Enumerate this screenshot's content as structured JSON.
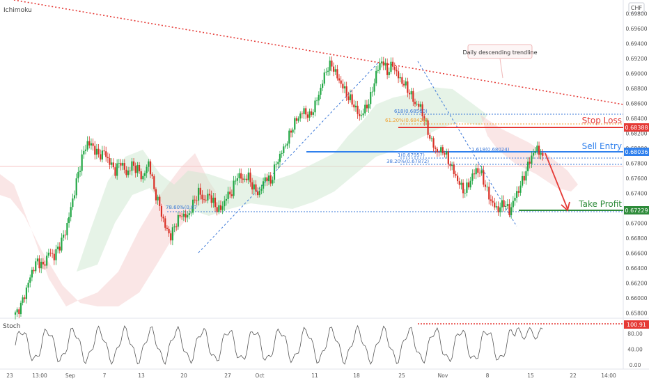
{
  "indicators": {
    "main": "Ichimoku",
    "sub": "Stoch",
    "currency": "CHF"
  },
  "chart_data": {
    "type": "candlestick",
    "price_axis": {
      "ticks": [
        "0.69800",
        "0.69600",
        "0.69400",
        "0.69200",
        "0.69000",
        "0.68800",
        "0.68600",
        "0.68400",
        "0.68200",
        "0.68000",
        "0.67800",
        "0.67600",
        "0.67400",
        "0.67200",
        "0.67000",
        "0.66800",
        "0.66600",
        "0.66400",
        "0.66200",
        "0.66000",
        "0.65800"
      ],
      "range": [
        0.6575,
        0.6998
      ]
    },
    "stoch_axis": {
      "ticks": [
        "80.00",
        "40.00",
        "0.00"
      ],
      "range": [
        0,
        110
      ]
    },
    "time_axis": {
      "labels": [
        "23",
        "13:00",
        "Sep",
        "7",
        "13",
        "20",
        "27",
        "Oct",
        "11",
        "18",
        "25",
        "Nov",
        "8",
        "15",
        "22",
        "14:00"
      ]
    },
    "price_tags": {
      "stop_loss": "0.68388",
      "sell_entry": "0.68036",
      "take_profit": "0.67229",
      "stoch_value": "100.91"
    },
    "annotations": {
      "trendline": "Daily descending trendline",
      "stop_loss": "Stop Loss",
      "sell_entry": "Sell Entry",
      "take_profit": "Take Profit",
      "fib_786": "78.60%(0.67",
      "fib_618a": "618(0.68560)",
      "fib_618b": "61.20%(0.68421)",
      "fib_1": "1(0.67957)",
      "fib_382": "38.20%(0.67872)",
      "fib_1618": "1.618(0.68024)"
    },
    "levels": {
      "stop_loss": 0.68388,
      "sell_entry": 0.68036,
      "take_profit": 0.67229,
      "fib_618a": 0.6856,
      "fib_618b": 0.68421,
      "fib_1": 0.67957,
      "fib_382": 0.67872,
      "fib_786": 0.67229,
      "stoch_top": 100.91
    },
    "close_path": [
      [
        0,
        0.6578
      ],
      [
        3,
        0.659
      ],
      [
        6,
        0.6612
      ],
      [
        9,
        0.6636
      ],
      [
        12,
        0.665
      ],
      [
        15,
        0.6642
      ],
      [
        18,
        0.6661
      ],
      [
        21,
        0.6656
      ],
      [
        24,
        0.6671
      ],
      [
        27,
        0.6688
      ],
      [
        30,
        0.672
      ],
      [
        33,
        0.6755
      ],
      [
        36,
        0.6788
      ],
      [
        39,
        0.6808
      ],
      [
        42,
        0.6802
      ],
      [
        45,
        0.679
      ],
      [
        48,
        0.6795
      ],
      [
        51,
        0.6781
      ],
      [
        54,
        0.677
      ],
      [
        57,
        0.6783
      ],
      [
        60,
        0.6765
      ],
      [
        63,
        0.6778
      ],
      [
        66,
        0.6772
      ],
      [
        69,
        0.676
      ],
      [
        72,
        0.6782
      ],
      [
        75,
        0.6745
      ],
      [
        78,
        0.6722
      ],
      [
        81,
        0.6695
      ],
      [
        84,
        0.6682
      ],
      [
        87,
        0.6702
      ],
      [
        90,
        0.6712
      ],
      [
        93,
        0.6708
      ],
      [
        96,
        0.6725
      ],
      [
        99,
        0.6742
      ],
      [
        102,
        0.673
      ],
      [
        105,
        0.6738
      ],
      [
        108,
        0.6722
      ],
      [
        111,
        0.6718
      ],
      [
        114,
        0.6735
      ],
      [
        117,
        0.6742
      ],
      [
        120,
        0.6765
      ],
      [
        123,
        0.6758
      ],
      [
        126,
        0.6762
      ],
      [
        129,
        0.6745
      ],
      [
        132,
        0.674
      ],
      [
        135,
        0.6762
      ],
      [
        138,
        0.6755
      ],
      [
        141,
        0.678
      ],
      [
        144,
        0.6795
      ],
      [
        147,
        0.681
      ],
      [
        150,
        0.683
      ],
      [
        153,
        0.6842
      ],
      [
        156,
        0.685
      ],
      [
        159,
        0.6842
      ],
      [
        162,
        0.6858
      ],
      [
        165,
        0.688
      ],
      [
        168,
        0.6905
      ],
      [
        171,
        0.6912
      ],
      [
        174,
        0.6895
      ],
      [
        177,
        0.6882
      ],
      [
        180,
        0.6868
      ],
      [
        183,
        0.6858
      ],
      [
        186,
        0.6842
      ],
      [
        189,
        0.6852
      ],
      [
        192,
        0.6868
      ],
      [
        195,
        0.69
      ],
      [
        198,
        0.6918
      ],
      [
        201,
        0.6902
      ],
      [
        204,
        0.6912
      ],
      [
        207,
        0.6895
      ],
      [
        210,
        0.6886
      ],
      [
        213,
        0.6875
      ],
      [
        216,
        0.686
      ],
      [
        219,
        0.6855
      ],
      [
        222,
        0.683
      ],
      [
        225,
        0.6808
      ],
      [
        228,
        0.6795
      ],
      [
        231,
        0.6798
      ],
      [
        234,
        0.6784
      ],
      [
        237,
        0.6768
      ],
      [
        240,
        0.6752
      ],
      [
        243,
        0.6742
      ],
      [
        246,
        0.6758
      ],
      [
        249,
        0.6772
      ],
      [
        252,
        0.6765
      ],
      [
        255,
        0.6742
      ],
      [
        258,
        0.6725
      ],
      [
        261,
        0.6718
      ],
      [
        264,
        0.6728
      ],
      [
        267,
        0.6715
      ],
      [
        270,
        0.6735
      ],
      [
        273,
        0.675
      ],
      [
        276,
        0.677
      ],
      [
        279,
        0.679
      ],
      [
        282,
        0.68
      ],
      [
        285,
        0.679
      ]
    ]
  }
}
